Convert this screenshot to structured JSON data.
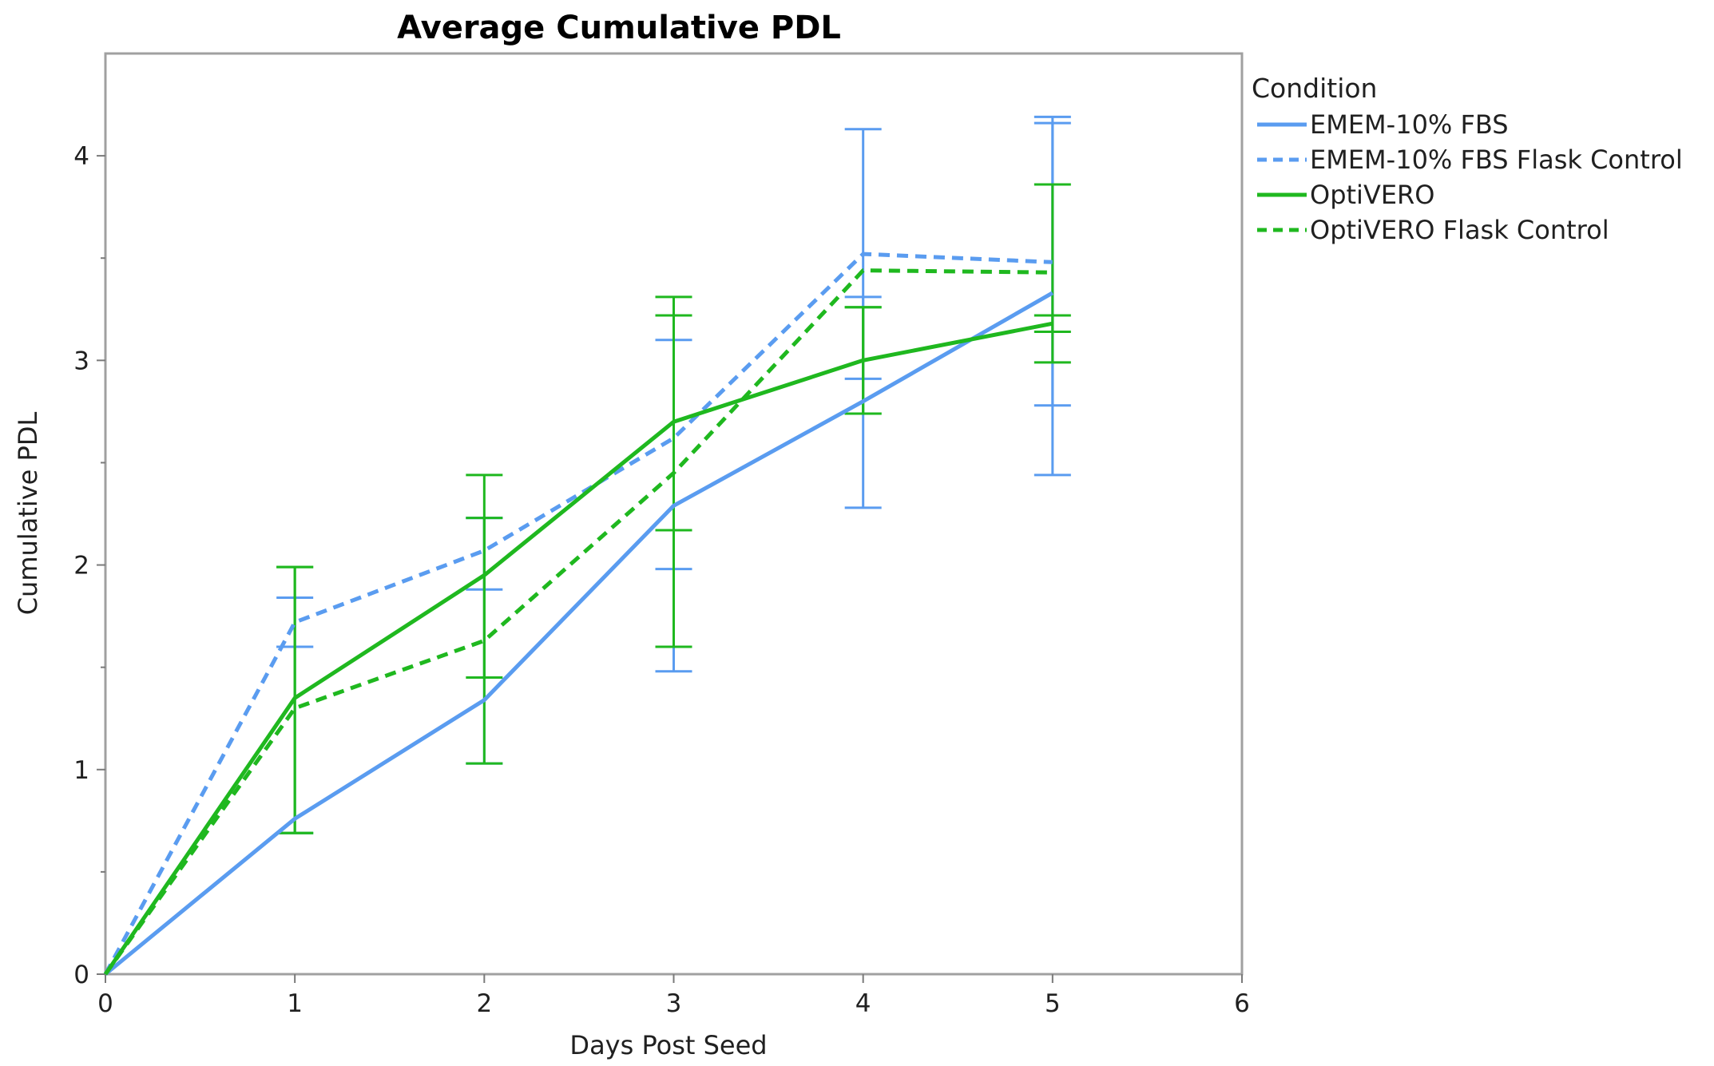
{
  "chart_data": {
    "type": "line",
    "title": "Average Cumulative PDL",
    "xlabel": "Days Post Seed",
    "ylabel": "Cumulative PDL",
    "xlim": [
      0,
      6
    ],
    "ylim": [
      0,
      4.5
    ],
    "xticks": [
      "0",
      "1",
      "2",
      "3",
      "4",
      "5",
      "6"
    ],
    "yticks": [
      "0",
      "1",
      "2",
      "3",
      "4"
    ],
    "legend_title": "Condition",
    "legend_position": "right",
    "grid": false,
    "x": [
      0,
      1,
      2,
      3,
      4,
      5
    ],
    "series": [
      {
        "name": "EMEM-10% FBS",
        "color": "#5a9cf0",
        "style": "solid",
        "values": [
          0,
          0.76,
          1.34,
          2.29,
          2.8,
          3.33
        ],
        "err_low": [
          null,
          0.69,
          1.03,
          1.48,
          2.28,
          2.44
        ],
        "err_high": [
          null,
          1.6,
          2.23,
          3.1,
          3.31,
          4.16
        ]
      },
      {
        "name": "EMEM-10% FBS Flask Control",
        "color": "#5a9cf0",
        "style": "dashed",
        "values": [
          0,
          1.72,
          2.07,
          2.62,
          3.52,
          3.48
        ],
        "err_low": [
          null,
          1.6,
          1.88,
          1.98,
          2.91,
          2.78
        ],
        "err_high": [
          null,
          1.84,
          2.23,
          3.22,
          4.13,
          4.19
        ]
      },
      {
        "name": "OptiVERO",
        "color": "#1fb81f",
        "style": "solid",
        "values": [
          0,
          1.35,
          1.95,
          2.7,
          3.0,
          3.18
        ],
        "err_low": [
          null,
          0.69,
          1.45,
          1.6,
          2.74,
          2.99
        ],
        "err_high": [
          null,
          1.99,
          2.44,
          3.31,
          3.26,
          3.86
        ]
      },
      {
        "name": "OptiVERO Flask Control",
        "color": "#1fb81f",
        "style": "dashed",
        "values": [
          0,
          1.3,
          1.63,
          2.45,
          3.44,
          3.43
        ],
        "err_low": [
          null,
          0.69,
          1.03,
          2.17,
          2.74,
          3.14
        ],
        "err_high": [
          null,
          1.99,
          2.23,
          3.22,
          3.26,
          3.22
        ]
      }
    ]
  }
}
